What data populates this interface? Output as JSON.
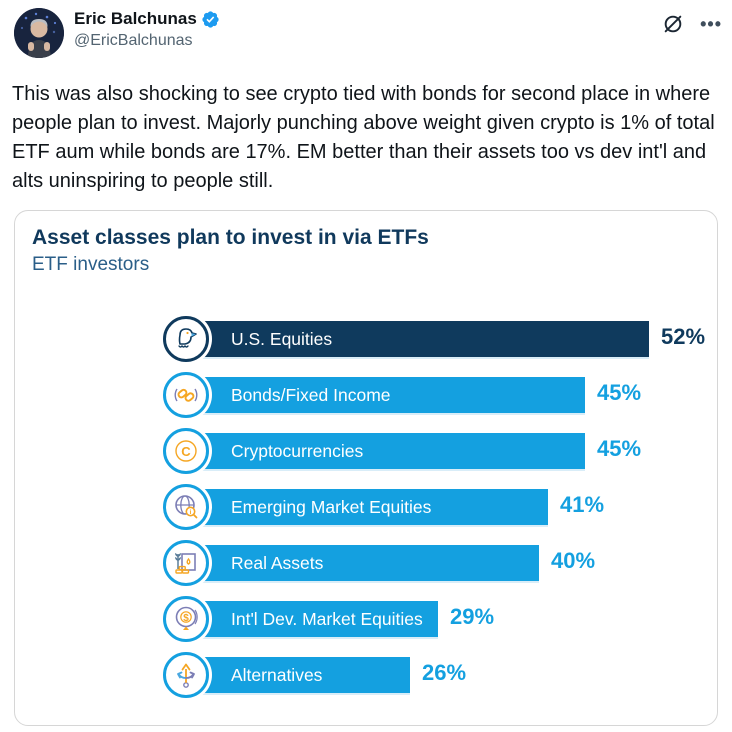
{
  "header": {
    "display_name": "Eric Balchunas",
    "handle": "@EricBalchunas",
    "verified_badge": "verified-badge",
    "actions": {
      "grok_icon": "grok-icon",
      "more_icon": "more-ellipsis-icon"
    }
  },
  "tweet": {
    "text": "This was also shocking to see crypto tied with bonds for second place in where people plan to invest. Majorly punching above weight given crypto is 1% of total ETF aum while bonds are 17%. EM better than their assets too vs dev int'l and alts uninspiring to people still."
  },
  "chart_data": {
    "type": "bar",
    "orientation": "horizontal",
    "title": "Asset classes plan to invest in via ETFs",
    "subtitle": "ETF investors",
    "unit": "%",
    "xlim": [
      0,
      60
    ],
    "grid": false,
    "legend": "none",
    "categories": [
      "U.S. Equities",
      "Bonds/Fixed Income",
      "Cryptocurrencies",
      "Emerging Market Equities",
      "Real Assets",
      "Int'l Dev. Market Equities",
      "Alternatives"
    ],
    "values": [
      52,
      45,
      45,
      41,
      40,
      29,
      26
    ],
    "value_labels": [
      "52%",
      "45%",
      "45%",
      "41%",
      "40%",
      "29%",
      "26%"
    ],
    "icons": [
      "eagle-icon",
      "chain-links-icon",
      "crypto-coin-icon",
      "globe-magnifier-icon",
      "real-assets-icon",
      "globe-stand-dollar-icon",
      "branching-arrows-icon"
    ],
    "colors": {
      "highlight_bar": "#0f3a5d",
      "default_bar": "#14a0e0",
      "bar_text": "#ffffff",
      "highlight_value_text": "#0f3a5d",
      "default_value_text": "#14a0e0"
    }
  },
  "theme": {
    "name_color": "#0f1419",
    "handle_color": "#536471",
    "verified_color": "#1d9bf0",
    "card_border": "#d6d6d6",
    "icon_orange": "#f5a623",
    "icon_purple": "#7c7eb5"
  }
}
